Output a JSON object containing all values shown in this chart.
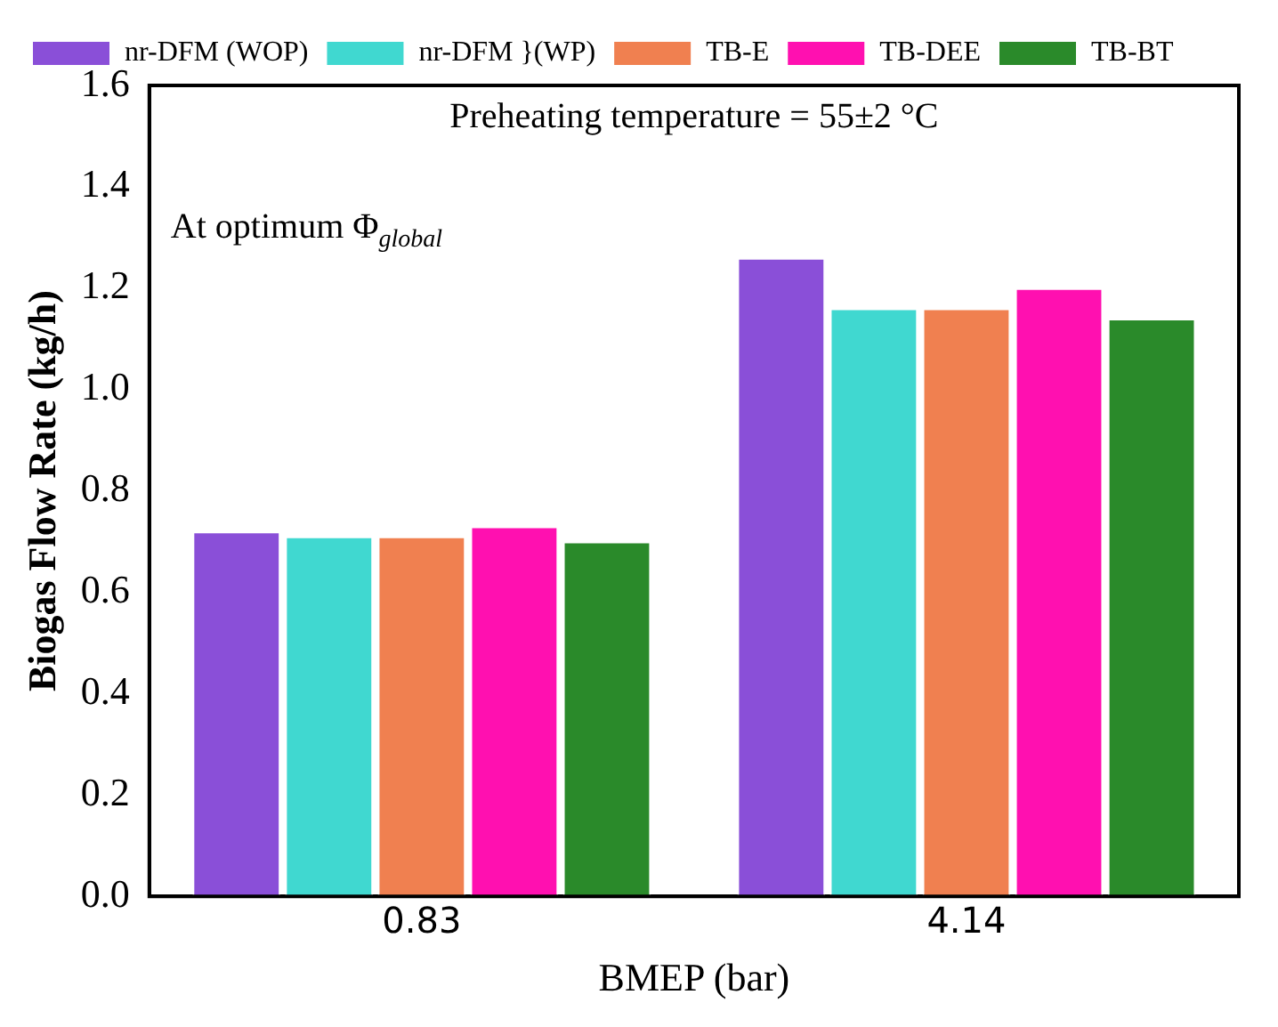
{
  "chart_data": {
    "type": "bar",
    "xlabel": "BMEP (bar)",
    "ylabel": "Biogas Flow Rate (kg/h)",
    "categories": [
      "0.83",
      "4.14"
    ],
    "series": [
      {
        "name": "nr-DFM (WOP)",
        "color": "#8a4fd8",
        "values": [
          0.72,
          1.26
        ]
      },
      {
        "name": "nr-DFM }(WP)",
        "color": "#40d8d0",
        "values": [
          0.71,
          1.16
        ]
      },
      {
        "name": "TB-E",
        "color": "#f08050",
        "values": [
          0.71,
          1.16
        ]
      },
      {
        "name": "TB-DEE",
        "color": "#ff10b0",
        "values": [
          0.73,
          1.2
        ]
      },
      {
        "name": "TB-BT",
        "color": "#2a8a2a",
        "values": [
          0.7,
          1.14
        ]
      }
    ],
    "ylim": [
      0,
      1.6
    ],
    "yticks": [
      {
        "value": 0,
        "label": "0.0"
      },
      {
        "value": 0.2,
        "label": "0.2"
      },
      {
        "value": 0.4,
        "label": "0.4"
      },
      {
        "value": 0.6,
        "label": "0.6"
      },
      {
        "value": 0.8,
        "label": "0.8"
      },
      {
        "value": 1,
        "label": "1.0"
      },
      {
        "value": 1.2,
        "label": "1.2"
      },
      {
        "value": 1.4,
        "label": "1.4"
      },
      {
        "value": 1.6,
        "label": "1.6"
      }
    ],
    "legend": "top left",
    "grid": false,
    "annotations": [
      "Preheating temperature = 55±2 °C",
      "At optimum Φ$_{global}$"
    ]
  }
}
